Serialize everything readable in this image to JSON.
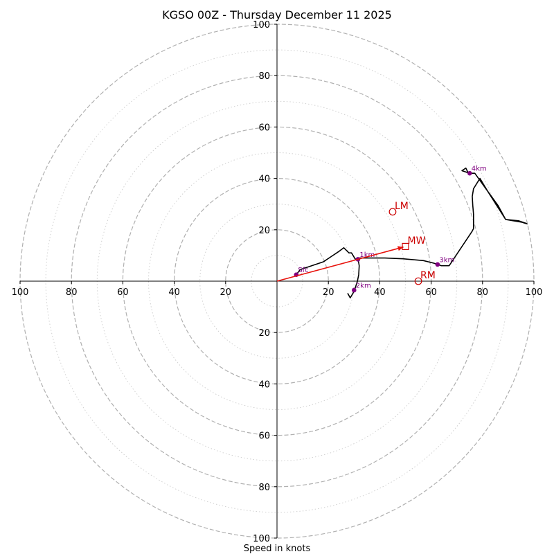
{
  "chart_data": {
    "type": "line",
    "subtype": "hodograph",
    "title": "KGSO 00Z - Thursday December 11 2025",
    "xlabel": "Speed in knots",
    "units": "knots",
    "xlim": [
      -100,
      100
    ],
    "ylim": [
      -100,
      100
    ],
    "major_rings": [
      20,
      40,
      60,
      80,
      100
    ],
    "minor_rings": [
      10,
      30,
      50,
      70,
      90
    ],
    "tick_values": [
      20,
      40,
      60,
      80,
      100
    ],
    "x_tick_labels": [
      "100",
      "80",
      "60",
      "40",
      "20",
      "20",
      "40",
      "60",
      "80",
      "100"
    ],
    "y_tick_labels_top": [
      "100",
      "80",
      "60",
      "40",
      "20"
    ],
    "y_tick_labels_bottom": [
      "20",
      "40",
      "60",
      "80",
      "100"
    ],
    "colors": {
      "trace": "#000000",
      "markers": "#800080",
      "storm_motion": "#cc0000",
      "mean_wind_vector": "#e8130d",
      "major_grid": "#b0b0b0",
      "minor_grid": "#d0d0d0"
    },
    "hodograph": {
      "u": [
        7.5,
        9,
        12,
        15,
        18,
        21,
        24,
        26,
        28,
        29,
        30.5,
        31.5,
        36,
        42,
        49,
        57,
        61,
        64,
        67,
        68,
        70,
        72,
        74,
        76,
        76.5,
        76.5,
        76.2,
        76,
        76.5,
        79,
        82,
        86,
        89,
        94,
        100,
        95,
        89,
        82,
        77,
        74.5,
        73.5,
        72,
        75
      ],
      "v": [
        2.5,
        4.5,
        5.5,
        6.5,
        7.5,
        9.5,
        11.5,
        13,
        11,
        11,
        8.5,
        9,
        9,
        9,
        8.7,
        8,
        7,
        6,
        6,
        7.5,
        10.5,
        13.5,
        16.5,
        19.5,
        20.5,
        26,
        29.5,
        33,
        36,
        40,
        35,
        29.5,
        24,
        23.5,
        21.5,
        23,
        24,
        35,
        42,
        42,
        44,
        43,
        42
      ],
      "lower_segment": {
        "u": [
          31.5,
          32,
          31.8,
          31.3,
          30,
          28.5,
          27.5
        ],
        "v": [
          9,
          6,
          2.5,
          0,
          -4,
          -6.5,
          -4.7
        ]
      }
    },
    "height_markers": [
      {
        "label": "Sfc",
        "u": 7.5,
        "v": 2.5
      },
      {
        "label": "1km",
        "u": 31.5,
        "v": 8.5
      },
      {
        "label": "2km",
        "u": 30,
        "v": -3.5
      },
      {
        "label": "3km",
        "u": 62.5,
        "v": 6.5
      },
      {
        "label": "4km",
        "u": 75,
        "v": 42
      }
    ],
    "storm_motion": [
      {
        "label": "LM",
        "u": 45,
        "v": 27,
        "marker": "circle"
      },
      {
        "label": "MW",
        "u": 50,
        "v": 13.5,
        "marker": "square"
      },
      {
        "label": "RM",
        "u": 55,
        "v": 0,
        "marker": "circle"
      }
    ],
    "mean_wind_vector": {
      "u": 50,
      "v": 13.5
    }
  }
}
